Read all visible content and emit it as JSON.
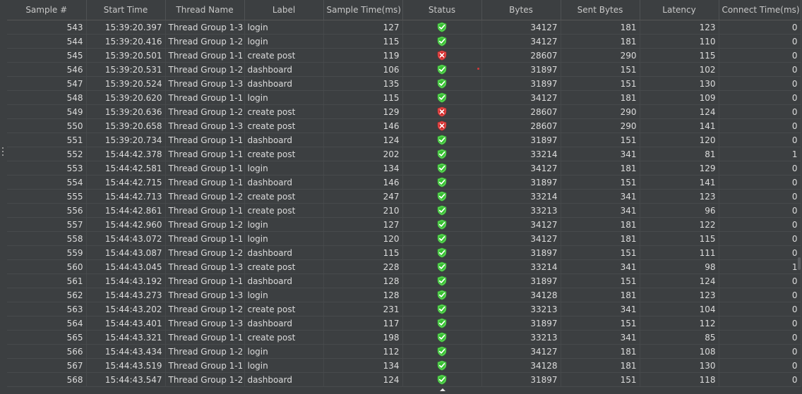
{
  "colors": {
    "background": "#3c3f41",
    "text": "#dcdcdc",
    "success_shield": "#35c22f",
    "error_shield": "#d42424"
  },
  "icons": {
    "success": "shield-check-icon",
    "error": "shield-x-icon"
  },
  "table": {
    "columns": [
      "Sample #",
      "Start Time",
      "Thread Name",
      "Label",
      "Sample Time(ms)",
      "Status",
      "Bytes",
      "Sent Bytes",
      "Latency",
      "Connect Time(ms)"
    ],
    "rows": [
      {
        "sample": "543",
        "start_time": "15:39:20.397",
        "thread": "Thread Group 1-3",
        "label": "login",
        "sample_time": "127",
        "status": "success",
        "bytes": "34127",
        "sent_bytes": "181",
        "latency": "123",
        "connect_time": "0"
      },
      {
        "sample": "544",
        "start_time": "15:39:20.416",
        "thread": "Thread Group 1-2",
        "label": "login",
        "sample_time": "115",
        "status": "success",
        "bytes": "34127",
        "sent_bytes": "181",
        "latency": "110",
        "connect_time": "0"
      },
      {
        "sample": "545",
        "start_time": "15:39:20.501",
        "thread": "Thread Group 1-1",
        "label": "create post",
        "sample_time": "119",
        "status": "error",
        "bytes": "28607",
        "sent_bytes": "290",
        "latency": "115",
        "connect_time": "0"
      },
      {
        "sample": "546",
        "start_time": "15:39:20.531",
        "thread": "Thread Group 1-2",
        "label": "dashboard",
        "sample_time": "106",
        "status": "success",
        "bytes": "31897",
        "sent_bytes": "151",
        "latency": "102",
        "connect_time": "0"
      },
      {
        "sample": "547",
        "start_time": "15:39:20.524",
        "thread": "Thread Group 1-3",
        "label": "dashboard",
        "sample_time": "135",
        "status": "success",
        "bytes": "31897",
        "sent_bytes": "151",
        "latency": "130",
        "connect_time": "0"
      },
      {
        "sample": "548",
        "start_time": "15:39:20.620",
        "thread": "Thread Group 1-1",
        "label": "login",
        "sample_time": "115",
        "status": "success",
        "bytes": "34127",
        "sent_bytes": "181",
        "latency": "109",
        "connect_time": "0"
      },
      {
        "sample": "549",
        "start_time": "15:39:20.636",
        "thread": "Thread Group 1-2",
        "label": "create post",
        "sample_time": "129",
        "status": "error",
        "bytes": "28607",
        "sent_bytes": "290",
        "latency": "124",
        "connect_time": "0"
      },
      {
        "sample": "550",
        "start_time": "15:39:20.658",
        "thread": "Thread Group 1-3",
        "label": "create post",
        "sample_time": "146",
        "status": "error",
        "bytes": "28607",
        "sent_bytes": "290",
        "latency": "141",
        "connect_time": "0"
      },
      {
        "sample": "551",
        "start_time": "15:39:20.734",
        "thread": "Thread Group 1-1",
        "label": "dashboard",
        "sample_time": "124",
        "status": "success",
        "bytes": "31897",
        "sent_bytes": "151",
        "latency": "120",
        "connect_time": "0"
      },
      {
        "sample": "552",
        "start_time": "15:44:42.378",
        "thread": "Thread Group 1-1",
        "label": "create post",
        "sample_time": "202",
        "status": "success",
        "bytes": "33214",
        "sent_bytes": "341",
        "latency": "81",
        "connect_time": "1"
      },
      {
        "sample": "553",
        "start_time": "15:44:42.581",
        "thread": "Thread Group 1-1",
        "label": "login",
        "sample_time": "134",
        "status": "success",
        "bytes": "34127",
        "sent_bytes": "181",
        "latency": "129",
        "connect_time": "0"
      },
      {
        "sample": "554",
        "start_time": "15:44:42.715",
        "thread": "Thread Group 1-1",
        "label": "dashboard",
        "sample_time": "146",
        "status": "success",
        "bytes": "31897",
        "sent_bytes": "151",
        "latency": "141",
        "connect_time": "0"
      },
      {
        "sample": "555",
        "start_time": "15:44:42.713",
        "thread": "Thread Group 1-2",
        "label": "create post",
        "sample_time": "247",
        "status": "success",
        "bytes": "33214",
        "sent_bytes": "341",
        "latency": "123",
        "connect_time": "0"
      },
      {
        "sample": "556",
        "start_time": "15:44:42.861",
        "thread": "Thread Group 1-1",
        "label": "create post",
        "sample_time": "210",
        "status": "success",
        "bytes": "33213",
        "sent_bytes": "341",
        "latency": "96",
        "connect_time": "0"
      },
      {
        "sample": "557",
        "start_time": "15:44:42.960",
        "thread": "Thread Group 1-2",
        "label": "login",
        "sample_time": "127",
        "status": "success",
        "bytes": "34127",
        "sent_bytes": "181",
        "latency": "122",
        "connect_time": "0"
      },
      {
        "sample": "558",
        "start_time": "15:44:43.072",
        "thread": "Thread Group 1-1",
        "label": "login",
        "sample_time": "120",
        "status": "success",
        "bytes": "34127",
        "sent_bytes": "181",
        "latency": "115",
        "connect_time": "0"
      },
      {
        "sample": "559",
        "start_time": "15:44:43.087",
        "thread": "Thread Group 1-2",
        "label": "dashboard",
        "sample_time": "115",
        "status": "success",
        "bytes": "31897",
        "sent_bytes": "151",
        "latency": "111",
        "connect_time": "0"
      },
      {
        "sample": "560",
        "start_time": "15:44:43.045",
        "thread": "Thread Group 1-3",
        "label": "create post",
        "sample_time": "228",
        "status": "success",
        "bytes": "33214",
        "sent_bytes": "341",
        "latency": "98",
        "connect_time": "1"
      },
      {
        "sample": "561",
        "start_time": "15:44:43.192",
        "thread": "Thread Group 1-1",
        "label": "dashboard",
        "sample_time": "128",
        "status": "success",
        "bytes": "31897",
        "sent_bytes": "151",
        "latency": "124",
        "connect_time": "0"
      },
      {
        "sample": "562",
        "start_time": "15:44:43.273",
        "thread": "Thread Group 1-3",
        "label": "login",
        "sample_time": "128",
        "status": "success",
        "bytes": "34128",
        "sent_bytes": "181",
        "latency": "123",
        "connect_time": "0"
      },
      {
        "sample": "563",
        "start_time": "15:44:43.202",
        "thread": "Thread Group 1-2",
        "label": "create post",
        "sample_time": "231",
        "status": "success",
        "bytes": "33213",
        "sent_bytes": "341",
        "latency": "104",
        "connect_time": "0"
      },
      {
        "sample": "564",
        "start_time": "15:44:43.401",
        "thread": "Thread Group 1-3",
        "label": "dashboard",
        "sample_time": "117",
        "status": "success",
        "bytes": "31897",
        "sent_bytes": "151",
        "latency": "112",
        "connect_time": "0"
      },
      {
        "sample": "565",
        "start_time": "15:44:43.321",
        "thread": "Thread Group 1-1",
        "label": "create post",
        "sample_time": "198",
        "status": "success",
        "bytes": "33213",
        "sent_bytes": "341",
        "latency": "85",
        "connect_time": "0"
      },
      {
        "sample": "566",
        "start_time": "15:44:43.434",
        "thread": "Thread Group 1-2",
        "label": "login",
        "sample_time": "112",
        "status": "success",
        "bytes": "34127",
        "sent_bytes": "181",
        "latency": "108",
        "connect_time": "0"
      },
      {
        "sample": "567",
        "start_time": "15:44:43.519",
        "thread": "Thread Group 1-1",
        "label": "login",
        "sample_time": "134",
        "status": "success",
        "bytes": "34128",
        "sent_bytes": "181",
        "latency": "130",
        "connect_time": "0"
      },
      {
        "sample": "568",
        "start_time": "15:44:43.547",
        "thread": "Thread Group 1-2",
        "label": "dashboard",
        "sample_time": "124",
        "status": "success",
        "bytes": "31897",
        "sent_bytes": "151",
        "latency": "118",
        "connect_time": "0"
      }
    ]
  }
}
